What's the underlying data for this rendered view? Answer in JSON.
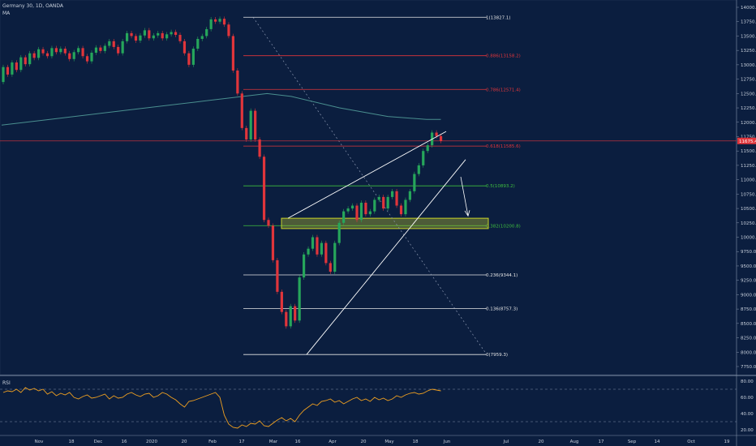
{
  "header": {
    "symbol": "Germany 30, 1D, OANDA",
    "indicator": "MA"
  },
  "rsi": {
    "label": "RSI",
    "ticks": [
      "80.00",
      "60.00",
      "40.00",
      "20.00"
    ]
  },
  "colors": {
    "background": "#0b1e3f",
    "up": "#26a65b",
    "down": "#e0353b",
    "ma": "#4a8f8f",
    "rsi": "#f0a020",
    "fib_red": "#e0353b",
    "fib_green": "#3fbf3f",
    "fib_white": "#e6e6e6",
    "zone": "#c8d12a",
    "price_tag": "#e0353b"
  },
  "chart_data": {
    "type": "candlestick",
    "title": "Germany 30, 1D, OANDA",
    "ylim": [
      7500,
      14000
    ],
    "y_ticks": [
      "14000.0",
      "13750.0",
      "13500.0",
      "13250.0",
      "13000.0",
      "12750.0",
      "12500.0",
      "12250.0",
      "12000.0",
      "11750.0",
      "11500.0",
      "11250.0",
      "11000.0",
      "10750.0",
      "10500.0",
      "10250.0",
      "10000.0",
      "9750.0",
      "9500.0",
      "9250.0",
      "9000.0",
      "8750.0",
      "8500.0",
      "8250.0",
      "8000.0",
      "7750.0"
    ],
    "x_labels": [
      "Nov",
      "18",
      "Dec",
      "16",
      "2020",
      "20",
      "Feb",
      "17",
      "Mar",
      "16",
      "Apr",
      "20",
      "May",
      "18",
      "Jun",
      "Jul",
      "20",
      "Aug",
      "17",
      "Sep",
      "14",
      "Oct",
      "19"
    ],
    "last_price": "11675.4",
    "fib_levels": [
      {
        "label": "1(13827.1)",
        "value": 13827.1,
        "color": "white"
      },
      {
        "label": "0.886(13158.2)",
        "value": 13158.2,
        "color": "red"
      },
      {
        "label": "0.786(12571.4)",
        "value": 12571.4,
        "color": "red"
      },
      {
        "label": "0.618(11585.6)",
        "value": 11585.6,
        "color": "red"
      },
      {
        "label": "0.5(10893.2)",
        "value": 10893.2,
        "color": "green"
      },
      {
        "label": "0.382(10200.8)",
        "value": 10200.8,
        "color": "green"
      },
      {
        "label": "0.236(9344.1)",
        "value": 9344.1,
        "color": "white"
      },
      {
        "label": "0.136(8757.3)",
        "value": 8757.3,
        "color": "white"
      },
      {
        "label": "0(7959.3)",
        "value": 7959.3,
        "color": "white"
      }
    ],
    "candles": [
      [
        12700,
        12960
      ],
      [
        12960,
        12830
      ],
      [
        12830,
        13040
      ],
      [
        13040,
        12910
      ],
      [
        12910,
        13130
      ],
      [
        13130,
        13010
      ],
      [
        13010,
        13200
      ],
      [
        13200,
        13120
      ],
      [
        13120,
        13270
      ],
      [
        13270,
        13200
      ],
      [
        13200,
        13150
      ],
      [
        13150,
        13290
      ],
      [
        13290,
        13220
      ],
      [
        13220,
        13280
      ],
      [
        13280,
        13200
      ],
      [
        13200,
        13100
      ],
      [
        13100,
        13220
      ],
      [
        13220,
        13290
      ],
      [
        13290,
        13150
      ],
      [
        13150,
        13060
      ],
      [
        13060,
        13210
      ],
      [
        13210,
        13300
      ],
      [
        13300,
        13240
      ],
      [
        13240,
        13330
      ],
      [
        13330,
        13410
      ],
      [
        13410,
        13310
      ],
      [
        13310,
        13200
      ],
      [
        13200,
        13410
      ],
      [
        13410,
        13550
      ],
      [
        13550,
        13500
      ],
      [
        13500,
        13420
      ],
      [
        13420,
        13510
      ],
      [
        13510,
        13600
      ],
      [
        13600,
        13460
      ],
      [
        13460,
        13510
      ],
      [
        13510,
        13550
      ],
      [
        13550,
        13460
      ],
      [
        13460,
        13530
      ],
      [
        13530,
        13570
      ],
      [
        13570,
        13520
      ],
      [
        13520,
        13410
      ],
      [
        13410,
        13200
      ],
      [
        13200,
        13000
      ],
      [
        13000,
        13280
      ],
      [
        13280,
        13450
      ],
      [
        13450,
        13500
      ],
      [
        13500,
        13620
      ],
      [
        13620,
        13790
      ],
      [
        13790,
        13750
      ],
      [
        13750,
        13800
      ],
      [
        13800,
        13700
      ],
      [
        13700,
        13500
      ],
      [
        13500,
        12900
      ],
      [
        12900,
        12500
      ],
      [
        12500,
        11900
      ],
      [
        11900,
        11700
      ],
      [
        11700,
        12200
      ],
      [
        12200,
        11700
      ],
      [
        11700,
        11400
      ],
      [
        11400,
        10300
      ],
      [
        10300,
        10200
      ],
      [
        10200,
        9600
      ],
      [
        9600,
        9050
      ],
      [
        9050,
        8700
      ],
      [
        8700,
        8450
      ],
      [
        8450,
        8800
      ],
      [
        8800,
        8550
      ],
      [
        8550,
        9300
      ],
      [
        9300,
        9700
      ],
      [
        9700,
        9800
      ],
      [
        9800,
        10000
      ],
      [
        10000,
        9700
      ],
      [
        9700,
        9900
      ],
      [
        9900,
        9550
      ],
      [
        9550,
        9400
      ],
      [
        9400,
        9900
      ],
      [
        9900,
        10250
      ],
      [
        10250,
        10450
      ],
      [
        10450,
        10500
      ],
      [
        10500,
        10550
      ],
      [
        10550,
        10300
      ],
      [
        10300,
        10600
      ],
      [
        10600,
        10400
      ],
      [
        10400,
        10450
      ],
      [
        10450,
        10650
      ],
      [
        10650,
        10700
      ],
      [
        10700,
        10500
      ],
      [
        10500,
        10700
      ],
      [
        10700,
        10800
      ],
      [
        10800,
        10550
      ],
      [
        10550,
        10400
      ],
      [
        10400,
        10650
      ],
      [
        10650,
        10800
      ],
      [
        10800,
        11100
      ],
      [
        11100,
        11250
      ],
      [
        11250,
        11500
      ],
      [
        11500,
        11600
      ],
      [
        11600,
        11820
      ],
      [
        11820,
        11760
      ],
      [
        11760,
        11675
      ]
    ],
    "ma": [
      [
        0,
        11950
      ],
      [
        10,
        12050
      ],
      [
        20,
        12150
      ],
      [
        30,
        12250
      ],
      [
        40,
        12350
      ],
      [
        50,
        12450
      ],
      [
        55,
        12500
      ],
      [
        60,
        12450
      ],
      [
        70,
        12250
      ],
      [
        80,
        12100
      ],
      [
        88,
        12050
      ],
      [
        91,
        12050
      ]
    ],
    "rsi_values": [
      66,
      68,
      67,
      70,
      66,
      72,
      69,
      71,
      68,
      70,
      64,
      67,
      62,
      65,
      63,
      66,
      60,
      58,
      61,
      63,
      59,
      60,
      62,
      64,
      58,
      62,
      59,
      60,
      64,
      66,
      63,
      61,
      64,
      65,
      60,
      62,
      66,
      64,
      60,
      57,
      52,
      48,
      55,
      56,
      58,
      60,
      62,
      64,
      66,
      60,
      38,
      27,
      23,
      22,
      26,
      24,
      28,
      27,
      31,
      25,
      24,
      28,
      32,
      35,
      31,
      34,
      30,
      38,
      44,
      48,
      52,
      50,
      55,
      56,
      58,
      54,
      56,
      52,
      55,
      58,
      60,
      56,
      58,
      55,
      60,
      57,
      59,
      56,
      58,
      62,
      60,
      63,
      65,
      66,
      64,
      65,
      68,
      70,
      69,
      68
    ]
  }
}
